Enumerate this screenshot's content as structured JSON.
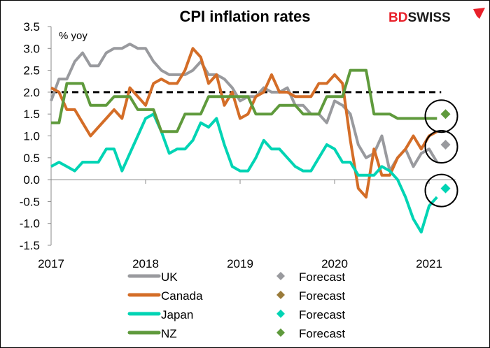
{
  "chart_data": {
    "type": "line",
    "title": "CPI inflation rates",
    "ylabel": "% yoy",
    "brand": {
      "part1": "BD",
      "part2": "SWISS",
      "color1": "#e8202a",
      "color2": "#1a1a1a"
    },
    "ylim": [
      -1.5,
      3.5
    ],
    "yticks": [
      "3.5",
      "3.0",
      "2.5",
      "2.0",
      "1.5",
      "1.0",
      "0.5",
      "0.0",
      "-0.5",
      "-1.0",
      "-1.5"
    ],
    "xticks": [
      "2017",
      "2018",
      "2019",
      "2020",
      "2021"
    ],
    "x_start": "2017-01",
    "x_end": "2021-02",
    "frequency": "monthly",
    "target_line": {
      "value": 2.0,
      "style": "dashed",
      "color": "#000000"
    },
    "legend_placement": "bottom",
    "series": [
      {
        "name": "UK",
        "color": "#999a9e",
        "values": [
          1.8,
          2.3,
          2.3,
          2.7,
          2.9,
          2.6,
          2.6,
          2.9,
          3.0,
          3.0,
          3.1,
          3.0,
          3.0,
          2.7,
          2.5,
          2.4,
          2.4,
          2.4,
          2.5,
          2.7,
          2.4,
          2.4,
          2.3,
          2.1,
          1.8,
          1.9,
          1.9,
          2.1,
          2.0,
          2.0,
          2.1,
          1.7,
          1.7,
          1.5,
          1.5,
          1.3,
          1.8,
          1.7,
          1.5,
          0.8,
          0.5,
          0.6,
          1.0,
          0.2,
          0.5,
          0.7,
          0.3,
          0.6,
          0.7,
          0.4
        ],
        "forecast": {
          "label": "Forecast",
          "date": "2021-03",
          "value": 0.8,
          "color": "#999a9e"
        }
      },
      {
        "name": "Canada",
        "color": "#d46d27",
        "values": [
          2.1,
          2.0,
          1.6,
          1.6,
          1.3,
          1.0,
          1.2,
          1.4,
          1.6,
          1.4,
          2.1,
          1.9,
          1.7,
          2.2,
          2.3,
          2.2,
          2.2,
          2.5,
          3.0,
          2.8,
          2.2,
          2.4,
          1.7,
          2.0,
          1.4,
          1.5,
          1.9,
          2.0,
          2.4,
          2.0,
          2.0,
          1.9,
          1.9,
          1.9,
          2.2,
          2.2,
          2.4,
          2.2,
          0.9,
          -0.2,
          -0.4,
          0.7,
          0.1,
          0.1,
          0.5,
          0.7,
          1.0,
          0.7,
          1.0,
          1.1
        ],
        "forecast": {
          "label": "Forecast",
          "date": "2021-03",
          "value": null,
          "color": "#9a7b3a"
        }
      },
      {
        "name": "Japan",
        "color": "#00d4b4",
        "values": [
          0.3,
          0.4,
          0.3,
          0.2,
          0.4,
          0.4,
          0.4,
          0.7,
          0.7,
          0.2,
          0.6,
          1.0,
          1.4,
          1.5,
          1.1,
          0.6,
          0.7,
          0.7,
          0.9,
          1.3,
          1.2,
          1.4,
          0.8,
          0.3,
          0.2,
          0.2,
          0.5,
          0.9,
          0.7,
          0.7,
          0.5,
          0.3,
          0.2,
          0.2,
          0.5,
          0.8,
          0.7,
          0.4,
          0.4,
          0.1,
          0.1,
          0.1,
          0.3,
          0.2,
          0.0,
          -0.4,
          -0.9,
          -1.2,
          -0.6,
          -0.4
        ],
        "forecast": {
          "label": "Forecast",
          "date": "2021-03",
          "value": -0.2,
          "color": "#00d4b4"
        }
      },
      {
        "name": "NZ",
        "color": "#5f9a3c",
        "values": [
          1.3,
          1.3,
          2.2,
          2.2,
          2.2,
          1.7,
          1.7,
          1.7,
          1.9,
          1.9,
          1.9,
          1.6,
          1.6,
          1.6,
          1.1,
          1.1,
          1.1,
          1.5,
          1.5,
          1.5,
          1.9,
          1.9,
          1.9,
          1.9,
          1.9,
          1.9,
          1.5,
          1.5,
          1.5,
          1.7,
          1.7,
          1.7,
          1.5,
          1.5,
          1.5,
          1.9,
          1.9,
          1.9,
          2.5,
          2.5,
          2.5,
          1.5,
          1.5,
          1.5,
          1.4,
          1.4,
          1.4,
          1.4,
          1.4,
          1.4
        ],
        "forecast": {
          "label": "Forecast",
          "date": "2021-03",
          "value": 1.5,
          "color": "#5f9a3c"
        }
      }
    ]
  }
}
